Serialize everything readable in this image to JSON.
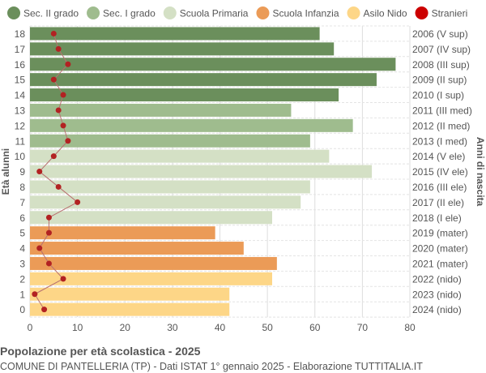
{
  "chart_data": {
    "type": "bar",
    "orientation": "horizontal",
    "title": "Popolazione per età scolastica - 2025",
    "subtitle": "COMUNE DI PANTELLERIA (TP) - Dati ISTAT 1° gennaio 2025 - Elaborazione TUTTITALIA.IT",
    "ylabel": "Età alunni",
    "ylabel_right": "Anni di nascita",
    "xlim": [
      0,
      80
    ],
    "xticks": [
      0,
      10,
      20,
      30,
      40,
      50,
      60,
      70,
      80
    ],
    "grid": true,
    "legend_position": "top",
    "legend": [
      {
        "name": "Sec. II grado",
        "color": "#6b8f5c"
      },
      {
        "name": "Sec. I grado",
        "color": "#9fbc8e"
      },
      {
        "name": "Scuola Primaria",
        "color": "#d4e0c5"
      },
      {
        "name": "Scuola Infanzia",
        "color": "#eb9b57"
      },
      {
        "name": "Asilo Nido",
        "color": "#fdd687"
      },
      {
        "name": "Stranieri",
        "color": "#cc0000"
      }
    ],
    "categories": [
      "18",
      "17",
      "16",
      "15",
      "14",
      "13",
      "12",
      "11",
      "10",
      "9",
      "8",
      "7",
      "6",
      "5",
      "4",
      "3",
      "2",
      "1",
      "0"
    ],
    "birth_labels": [
      "2006 (V sup)",
      "2007 (IV sup)",
      "2008 (III sup)",
      "2009 (II sup)",
      "2010 (I sup)",
      "2011 (III med)",
      "2012 (II med)",
      "2013 (I med)",
      "2014 (V ele)",
      "2015 (IV ele)",
      "2016 (III ele)",
      "2017 (II ele)",
      "2018 (I ele)",
      "2019 (mater)",
      "2020 (mater)",
      "2021 (mater)",
      "2022 (nido)",
      "2023 (nido)",
      "2024 (nido)"
    ],
    "groups": [
      0,
      0,
      0,
      0,
      0,
      1,
      1,
      1,
      2,
      2,
      2,
      2,
      2,
      3,
      3,
      3,
      4,
      4,
      4
    ],
    "series": [
      {
        "name": "Alunni",
        "values": [
          61,
          64,
          77,
          73,
          65,
          55,
          68,
          59,
          63,
          72,
          59,
          57,
          51,
          39,
          45,
          52,
          51,
          42,
          42
        ]
      },
      {
        "name": "Stranieri",
        "values": [
          5,
          6,
          8,
          5,
          7,
          6,
          7,
          8,
          5,
          2,
          6,
          10,
          4,
          4,
          2,
          4,
          7,
          1,
          3
        ]
      }
    ]
  }
}
